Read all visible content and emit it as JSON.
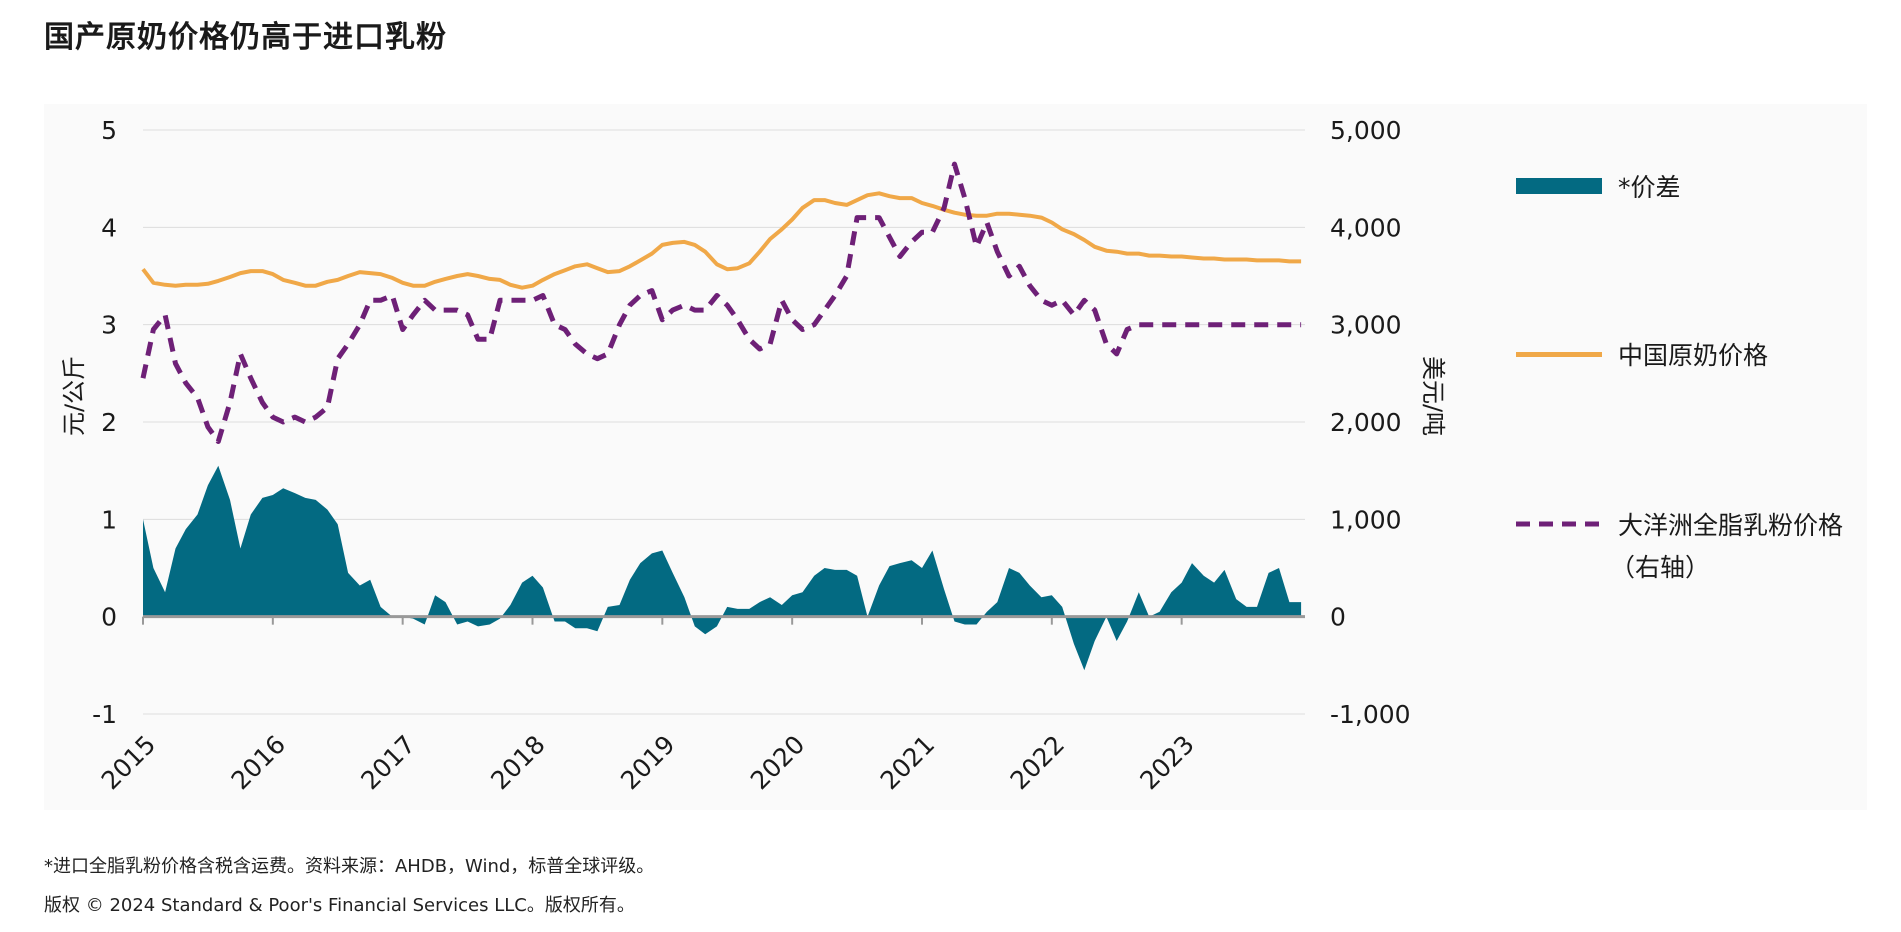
{
  "title": "国产原奶价格仍高于进口乳粉",
  "footnotes": {
    "note": "*进口全脂乳粉价格含税含运费。资料来源：AHDB，Wind，标普全球评级。",
    "copyright": "版权 © 2024 Standard & Poor's Financial Services LLC。版权所有。"
  },
  "colors": {
    "spread": "#036A82",
    "china_milk": "#F0A848",
    "oceania_wmp": "#6E2077",
    "grid": "#dddddd",
    "axis": "#999999"
  },
  "chart_data": {
    "type": "line",
    "x_unit": "year",
    "xlim": [
      2015,
      2023.95
    ],
    "x_ticks": [
      2015,
      2016,
      2017,
      2018,
      2019,
      2020,
      2021,
      2022,
      2023
    ],
    "x_tick_labels": [
      "2015",
      "2016",
      "2017",
      "2018",
      "2019",
      "2020",
      "2021",
      "2022",
      "2023"
    ],
    "y_left": {
      "label": "元/公斤",
      "lim": [
        -1,
        5
      ],
      "ticks": [
        -1,
        0,
        1,
        2,
        3,
        4,
        5
      ],
      "tick_labels": [
        "-1",
        "0",
        "1",
        "2",
        "3",
        "4",
        "5"
      ]
    },
    "y_right": {
      "label": "美元/吨",
      "lim": [
        -1000,
        5000
      ],
      "ticks": [
        -1000,
        0,
        1000,
        2000,
        3000,
        4000,
        5000
      ],
      "tick_labels": [
        "-1,000",
        "0",
        "1,000",
        "2,000",
        "3,000",
        "4,000",
        "5,000"
      ]
    },
    "grid": true,
    "legend_position": "right",
    "series": [
      {
        "name": "*价差",
        "style": "area",
        "axis": "left",
        "x": [
          2015.0,
          2015.08,
          2015.17,
          2015.25,
          2015.33,
          2015.42,
          2015.5,
          2015.58,
          2015.67,
          2015.75,
          2015.83,
          2015.92,
          2016.0,
          2016.08,
          2016.17,
          2016.25,
          2016.33,
          2016.42,
          2016.5,
          2016.58,
          2016.67,
          2016.75,
          2016.83,
          2016.92,
          2017.0,
          2017.08,
          2017.17,
          2017.25,
          2017.33,
          2017.42,
          2017.5,
          2017.58,
          2017.67,
          2017.75,
          2017.83,
          2017.92,
          2018.0,
          2018.08,
          2018.17,
          2018.25,
          2018.33,
          2018.42,
          2018.5,
          2018.58,
          2018.67,
          2018.75,
          2018.83,
          2018.92,
          2019.0,
          2019.08,
          2019.17,
          2019.25,
          2019.33,
          2019.42,
          2019.5,
          2019.58,
          2019.67,
          2019.75,
          2019.83,
          2019.92,
          2020.0,
          2020.08,
          2020.17,
          2020.25,
          2020.33,
          2020.42,
          2020.5,
          2020.58,
          2020.67,
          2020.75,
          2020.83,
          2020.92,
          2021.0,
          2021.08,
          2021.17,
          2021.25,
          2021.33,
          2021.42,
          2021.5,
          2021.58,
          2021.67,
          2021.75,
          2021.83,
          2021.92,
          2022.0,
          2022.08,
          2022.17,
          2022.25,
          2022.33,
          2022.42,
          2022.5,
          2022.58,
          2022.67,
          2022.75,
          2022.83,
          2022.92,
          2023.0,
          2023.08,
          2023.17,
          2023.25,
          2023.33,
          2023.42,
          2023.5,
          2023.58,
          2023.67,
          2023.75,
          2023.83,
          2023.92
        ],
        "values": [
          1.0,
          0.5,
          0.25,
          0.7,
          0.9,
          1.05,
          1.35,
          1.55,
          1.2,
          0.7,
          1.05,
          1.22,
          1.25,
          1.32,
          1.27,
          1.22,
          1.2,
          1.1,
          0.95,
          0.45,
          0.32,
          0.38,
          0.1,
          0.0,
          0.0,
          -0.02,
          -0.08,
          0.22,
          0.15,
          -0.08,
          -0.05,
          -0.1,
          -0.08,
          -0.02,
          0.12,
          0.35,
          0.42,
          0.3,
          -0.05,
          -0.05,
          -0.12,
          -0.12,
          -0.15,
          0.1,
          0.12,
          0.38,
          0.55,
          0.65,
          0.68,
          0.45,
          0.2,
          -0.1,
          -0.18,
          -0.1,
          0.1,
          0.08,
          0.08,
          0.15,
          0.2,
          0.12,
          0.22,
          0.25,
          0.42,
          0.5,
          0.48,
          0.48,
          0.42,
          0.0,
          0.32,
          0.52,
          0.55,
          0.58,
          0.5,
          0.68,
          0.28,
          -0.05,
          -0.08,
          -0.08,
          0.05,
          0.15,
          0.5,
          0.45,
          0.32,
          0.2,
          0.22,
          0.1,
          -0.28,
          -0.55,
          -0.25,
          0.0,
          -0.25,
          -0.05,
          0.25,
          0.0,
          0.05,
          0.25,
          0.35,
          0.55,
          0.42,
          0.35,
          0.48,
          0.18,
          0.1,
          0.1,
          0.45,
          0.5,
          0.15,
          0.15
        ]
      },
      {
        "name": "中国原奶价格",
        "style": "solid",
        "axis": "left",
        "x": [
          2015.0,
          2015.08,
          2015.17,
          2015.25,
          2015.33,
          2015.42,
          2015.5,
          2015.58,
          2015.67,
          2015.75,
          2015.83,
          2015.92,
          2016.0,
          2016.08,
          2016.17,
          2016.25,
          2016.33,
          2016.42,
          2016.5,
          2016.58,
          2016.67,
          2016.75,
          2016.83,
          2016.92,
          2017.0,
          2017.08,
          2017.17,
          2017.25,
          2017.33,
          2017.42,
          2017.5,
          2017.58,
          2017.67,
          2017.75,
          2017.83,
          2017.92,
          2018.0,
          2018.08,
          2018.17,
          2018.25,
          2018.33,
          2018.42,
          2018.5,
          2018.58,
          2018.67,
          2018.75,
          2018.83,
          2018.92,
          2019.0,
          2019.08,
          2019.17,
          2019.25,
          2019.33,
          2019.42,
          2019.5,
          2019.58,
          2019.67,
          2019.75,
          2019.83,
          2019.92,
          2020.0,
          2020.08,
          2020.17,
          2020.25,
          2020.33,
          2020.42,
          2020.5,
          2020.58,
          2020.67,
          2020.75,
          2020.83,
          2020.92,
          2021.0,
          2021.08,
          2021.17,
          2021.25,
          2021.33,
          2021.42,
          2021.5,
          2021.58,
          2021.67,
          2021.75,
          2021.83,
          2021.92,
          2022.0,
          2022.08,
          2022.17,
          2022.25,
          2022.33,
          2022.42,
          2022.5,
          2022.58,
          2022.67,
          2022.75,
          2022.83,
          2022.92,
          2023.0,
          2023.08,
          2023.17,
          2023.25,
          2023.33,
          2023.42,
          2023.5,
          2023.58,
          2023.67,
          2023.75,
          2023.83,
          2023.92
        ],
        "values": [
          3.57,
          3.43,
          3.41,
          3.4,
          3.41,
          3.41,
          3.42,
          3.45,
          3.49,
          3.53,
          3.55,
          3.55,
          3.52,
          3.46,
          3.43,
          3.4,
          3.4,
          3.44,
          3.46,
          3.5,
          3.54,
          3.53,
          3.52,
          3.48,
          3.43,
          3.4,
          3.4,
          3.44,
          3.47,
          3.5,
          3.52,
          3.5,
          3.47,
          3.46,
          3.41,
          3.38,
          3.4,
          3.46,
          3.52,
          3.56,
          3.6,
          3.62,
          3.58,
          3.54,
          3.55,
          3.6,
          3.66,
          3.73,
          3.82,
          3.84,
          3.85,
          3.82,
          3.75,
          3.62,
          3.57,
          3.58,
          3.63,
          3.75,
          3.88,
          3.98,
          4.08,
          4.2,
          4.28,
          4.28,
          4.25,
          4.23,
          4.28,
          4.33,
          4.35,
          4.32,
          4.3,
          4.3,
          4.25,
          4.22,
          4.18,
          4.15,
          4.13,
          4.12,
          4.12,
          4.14,
          4.14,
          4.13,
          4.12,
          4.1,
          4.05,
          3.98,
          3.93,
          3.87,
          3.8,
          3.76,
          3.75,
          3.73,
          3.73,
          3.71,
          3.71,
          3.7,
          3.7,
          3.69,
          3.68,
          3.68,
          3.67,
          3.67,
          3.67,
          3.66,
          3.66,
          3.66,
          3.65,
          3.65
        ]
      },
      {
        "name": "大洋洲全脂乳粉价格",
        "sub_label": "（右轴）",
        "style": "dashed",
        "axis": "right",
        "x": [
          2015.0,
          2015.08,
          2015.17,
          2015.25,
          2015.33,
          2015.42,
          2015.5,
          2015.58,
          2015.67,
          2015.75,
          2015.83,
          2015.92,
          2016.0,
          2016.08,
          2016.17,
          2016.25,
          2016.33,
          2016.42,
          2016.5,
          2016.58,
          2016.67,
          2016.75,
          2016.83,
          2016.92,
          2017.0,
          2017.08,
          2017.17,
          2017.25,
          2017.33,
          2017.42,
          2017.5,
          2017.58,
          2017.67,
          2017.75,
          2017.83,
          2017.92,
          2018.0,
          2018.08,
          2018.17,
          2018.25,
          2018.33,
          2018.42,
          2018.5,
          2018.58,
          2018.67,
          2018.75,
          2018.83,
          2018.92,
          2019.0,
          2019.08,
          2019.17,
          2019.25,
          2019.33,
          2019.42,
          2019.5,
          2019.58,
          2019.67,
          2019.75,
          2019.83,
          2019.92,
          2020.0,
          2020.08,
          2020.17,
          2020.25,
          2020.33,
          2020.42,
          2020.5,
          2020.58,
          2020.67,
          2020.75,
          2020.83,
          2020.92,
          2021.0,
          2021.08,
          2021.17,
          2021.25,
          2021.33,
          2021.42,
          2021.5,
          2021.58,
          2021.67,
          2021.75,
          2021.83,
          2021.92,
          2022.0,
          2022.08,
          2022.17,
          2022.25,
          2022.33,
          2022.42,
          2022.5,
          2022.58,
          2022.67,
          2022.75,
          2022.83,
          2022.92,
          2023.0,
          2023.08,
          2023.17,
          2023.25,
          2023.33,
          2023.42,
          2023.5,
          2023.58,
          2023.67,
          2023.75,
          2023.83,
          2023.92
        ],
        "values": [
          2450,
          2950,
          3100,
          2600,
          2400,
          2250,
          1950,
          1800,
          2200,
          2700,
          2450,
          2200,
          2050,
          2000,
          2050,
          2000,
          2050,
          2150,
          2650,
          2800,
          3000,
          3250,
          3250,
          3300,
          2950,
          3100,
          3250,
          3150,
          3150,
          3150,
          3100,
          2850,
          2850,
          3250,
          3250,
          3250,
          3250,
          3300,
          3000,
          2950,
          2800,
          2700,
          2650,
          2700,
          3000,
          3200,
          3300,
          3350,
          3050,
          3150,
          3200,
          3150,
          3150,
          3300,
          3200,
          3050,
          2850,
          2750,
          2800,
          3250,
          3050,
          2950,
          3000,
          3150,
          3300,
          3500,
          4100,
          4100,
          4100,
          3900,
          3700,
          3850,
          3950,
          3950,
          4200,
          4650,
          4300,
          3800,
          4050,
          3750,
          3500,
          3600,
          3400,
          3250,
          3200,
          3250,
          3100,
          3250,
          3150,
          2800,
          2700,
          2950,
          3000,
          3000,
          3000,
          3000,
          3000,
          3000,
          3000,
          3000,
          3000,
          3000,
          3000,
          3000,
          3000,
          3000,
          3000,
          3000
        ]
      }
    ]
  }
}
